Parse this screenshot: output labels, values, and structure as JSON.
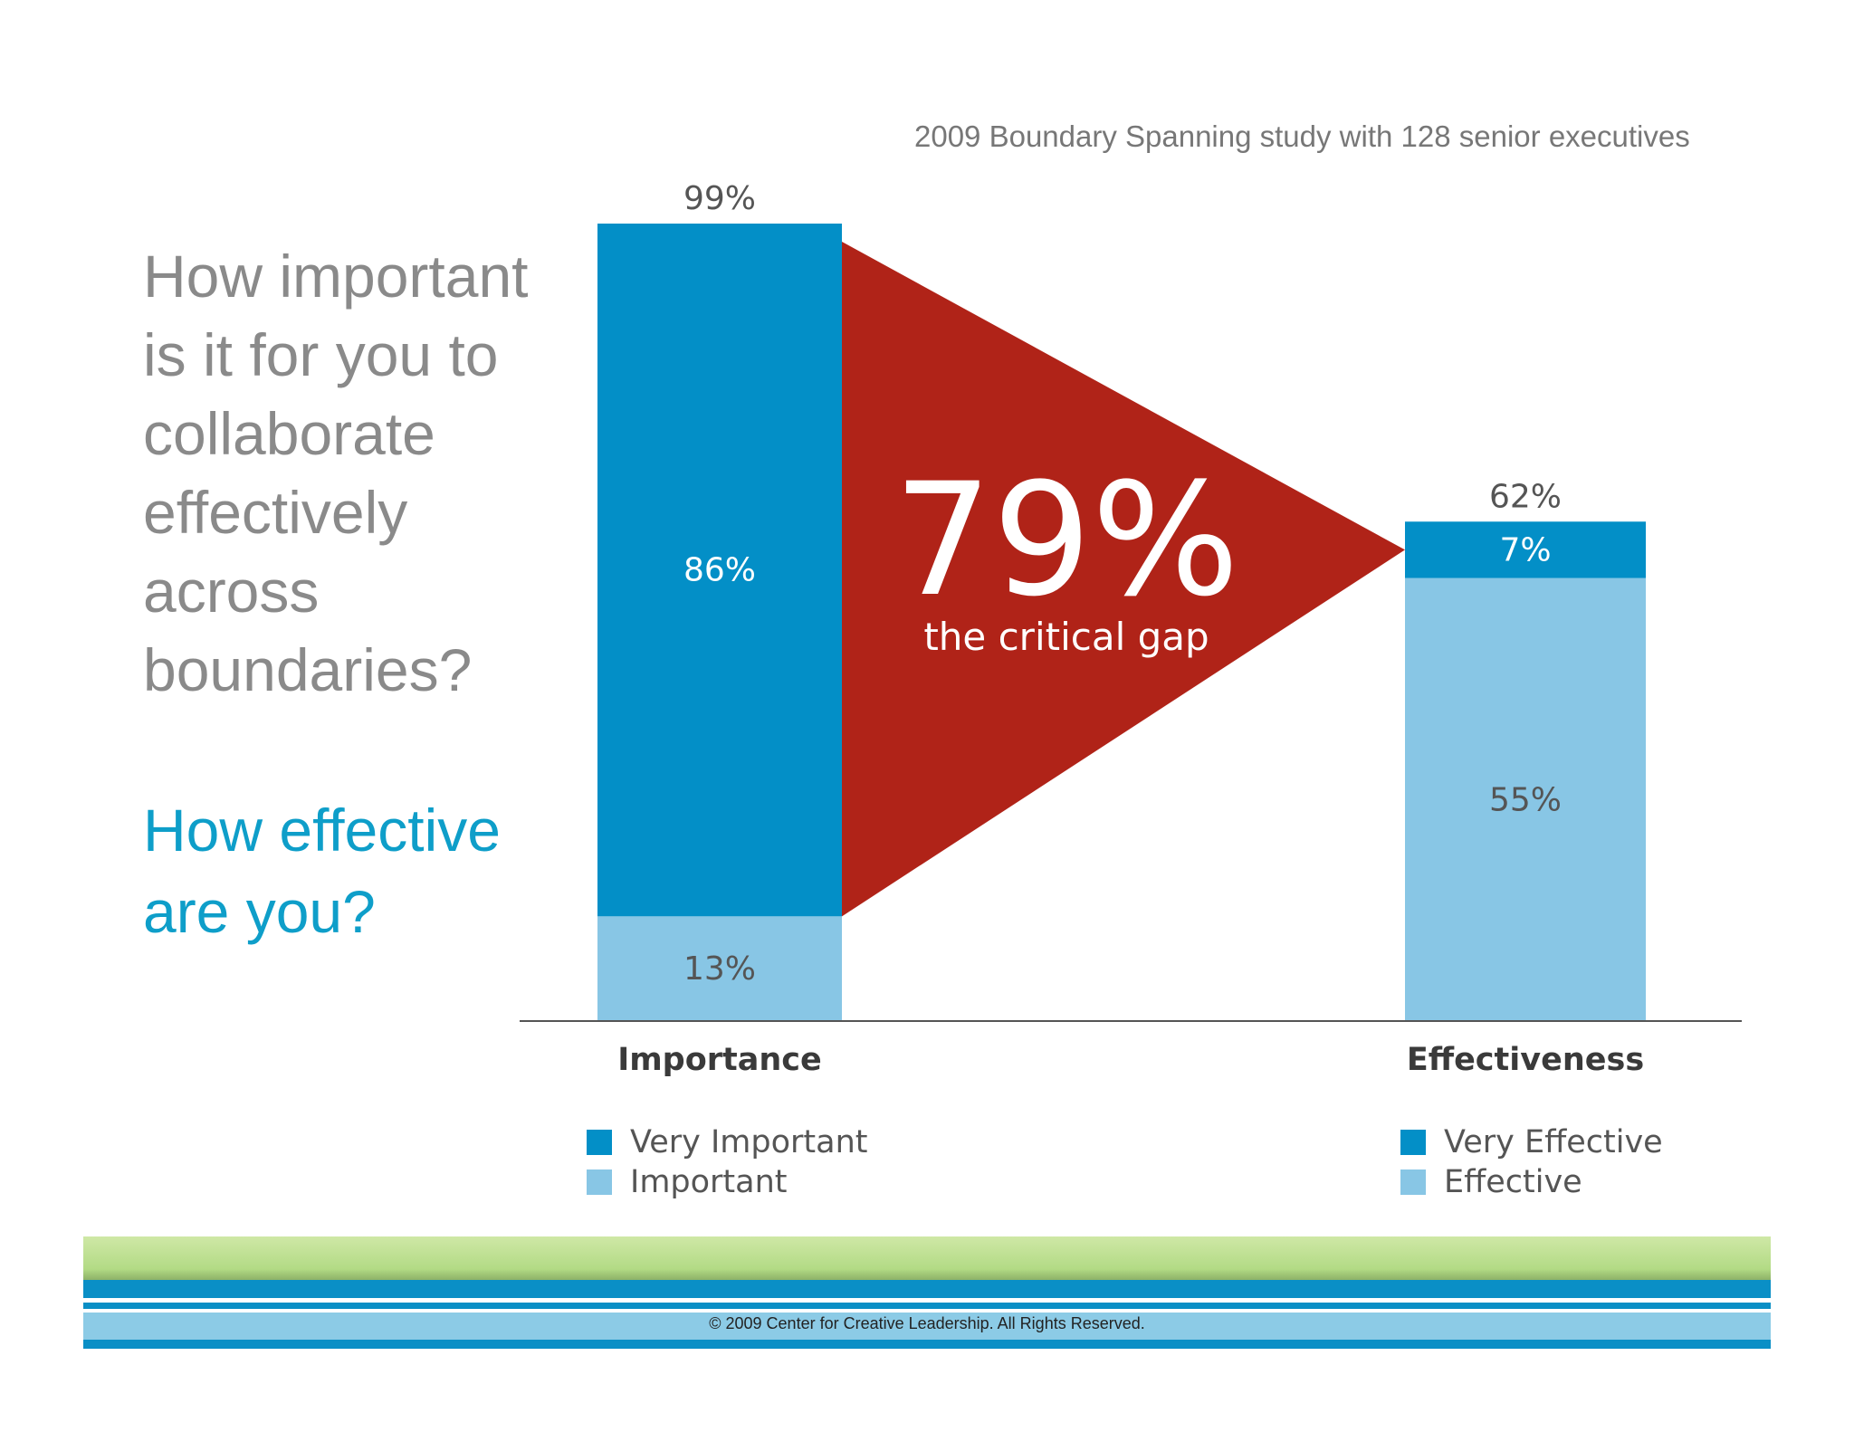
{
  "subtitle": "2009 Boundary Spanning study with 128 senior executives",
  "question_lines": [
    "How important",
    "is it for you to",
    "collaborate",
    "effectively",
    "across",
    "boundaries?"
  ],
  "effective_lines": [
    "How effective",
    "are you?"
  ],
  "footer": {
    "copyright": "© 2009 Center for Creative Leadership. All Rights Reserved."
  },
  "colors": {
    "dark_blue": "#038fc7",
    "light_blue": "#88c6e5",
    "gap_red": "#b02318",
    "question_gray": "#8a8a8a",
    "question_blue": "#0e9ec9"
  },
  "chart_data": {
    "type": "bar",
    "stacked": true,
    "categories": [
      "Importance",
      "Effectiveness"
    ],
    "series": [
      {
        "name": "Very Important / Very Effective",
        "values": [
          86,
          7
        ]
      },
      {
        "name": "Important / Effective",
        "values": [
          13,
          55
        ]
      }
    ],
    "totals": [
      "99%",
      "62%"
    ],
    "segment_labels": [
      [
        "86%",
        "13%"
      ],
      [
        "7%",
        "55%"
      ]
    ],
    "ylim": [
      0,
      100
    ],
    "gap": {
      "value": "79%",
      "caption": "the critical gap"
    },
    "legend_left": [
      {
        "label": "Very Important",
        "color": "#038fc7"
      },
      {
        "label": "Important",
        "color": "#88c6e5"
      }
    ],
    "legend_right": [
      {
        "label": "Very Effective",
        "color": "#038fc7"
      },
      {
        "label": "Effective",
        "color": "#88c6e5"
      }
    ]
  }
}
